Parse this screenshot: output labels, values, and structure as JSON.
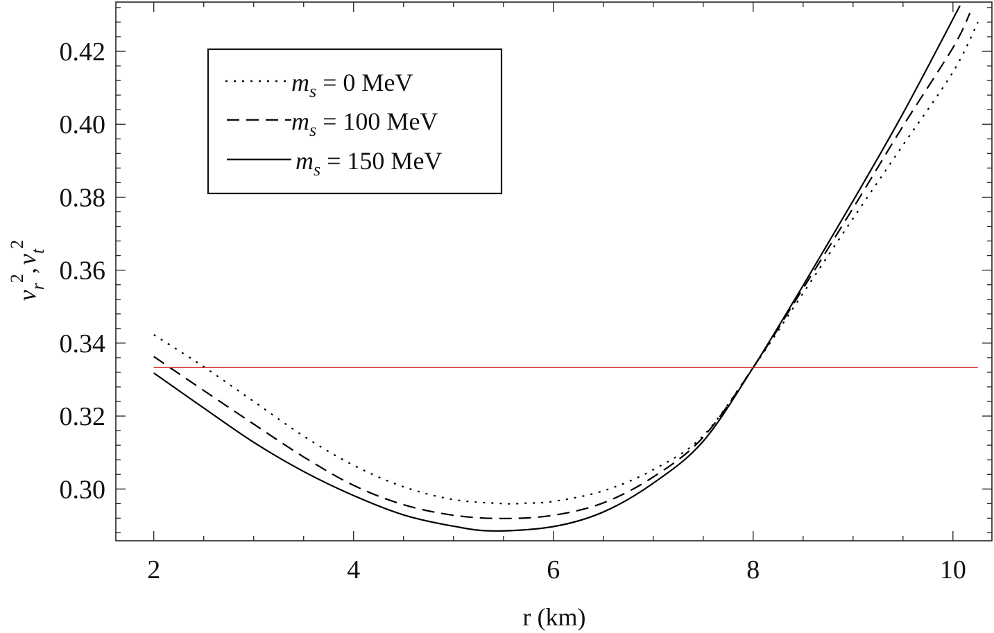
{
  "chart_data": {
    "type": "line",
    "title": "",
    "xlabel": "r (km)",
    "ylabel": "v_r^2, v_t^2",
    "ylabel_parts": {
      "v1": "v",
      "sub1": "r",
      "sup1": "2",
      "sep": ",",
      "v2": "v",
      "sub2": "t",
      "sup2": "2"
    },
    "xlim": [
      1.62,
      10.39
    ],
    "ylim": [
      0.2858,
      0.4335
    ],
    "x_ticks": [
      2,
      4,
      6,
      8,
      10
    ],
    "x_tick_labels": [
      "2",
      "4",
      "6",
      "8",
      "10"
    ],
    "y_ticks": [
      0.3,
      0.32,
      0.34,
      0.36,
      0.38,
      0.4,
      0.42
    ],
    "y_tick_labels": [
      "0.30",
      "0.32",
      "0.34",
      "0.36",
      "0.38",
      "0.40",
      "0.42"
    ],
    "grid": false,
    "legend_position": "top-left",
    "series": [
      {
        "name": "m_s = 0 MeV",
        "legend_var": "m",
        "legend_sub": "s",
        "legend_rest": " = 0 MeV",
        "style": "dotted",
        "color": "#000000",
        "x": [
          2.0,
          2.5,
          3.0,
          3.5,
          4.0,
          4.5,
          5.0,
          5.5,
          5.7,
          6.0,
          6.5,
          7.0,
          7.5,
          8.0,
          8.5,
          9.0,
          9.5,
          10.0,
          10.25
        ],
        "y": [
          0.3423,
          0.3335,
          0.324,
          0.3145,
          0.3065,
          0.3006,
          0.2971,
          0.296,
          0.2961,
          0.2966,
          0.2995,
          0.3053,
          0.3146,
          0.3333,
          0.3537,
          0.3742,
          0.3943,
          0.4143,
          0.428
        ]
      },
      {
        "name": "m_s = 100 MeV",
        "legend_var": "m",
        "legend_sub": "s",
        "legend_rest": " = 100 MeV",
        "style": "dashed",
        "color": "#000000",
        "x": [
          2.0,
          2.5,
          3.0,
          3.5,
          4.0,
          4.5,
          5.0,
          5.5,
          6.0,
          6.5,
          7.0,
          7.5,
          8.0,
          8.5,
          9.0,
          9.5,
          10.0,
          10.17
        ],
        "y": [
          0.3363,
          0.327,
          0.3178,
          0.3088,
          0.301,
          0.2957,
          0.2928,
          0.2919,
          0.2928,
          0.2962,
          0.3033,
          0.3142,
          0.3333,
          0.355,
          0.377,
          0.3995,
          0.421,
          0.4305
        ]
      },
      {
        "name": "m_s = 150 MeV",
        "legend_var": "m",
        "legend_sub": "s",
        "legend_rest": " = 150 MeV",
        "style": "solid",
        "color": "#000000",
        "x": [
          2.0,
          2.5,
          3.0,
          3.5,
          4.0,
          4.5,
          5.0,
          5.4,
          6.0,
          6.5,
          7.0,
          7.5,
          8.0,
          8.5,
          9.0,
          9.5,
          10.07
        ],
        "y": [
          0.3318,
          0.3222,
          0.3128,
          0.3048,
          0.2982,
          0.2929,
          0.2898,
          0.2885,
          0.2897,
          0.2937,
          0.3016,
          0.3131,
          0.3333,
          0.3558,
          0.379,
          0.403,
          0.4325
        ]
      },
      {
        "name": "reference 1/3",
        "style": "solid",
        "color": "#d62020",
        "x": [
          2.0,
          10.25
        ],
        "y": [
          0.3333,
          0.3333
        ]
      }
    ]
  }
}
